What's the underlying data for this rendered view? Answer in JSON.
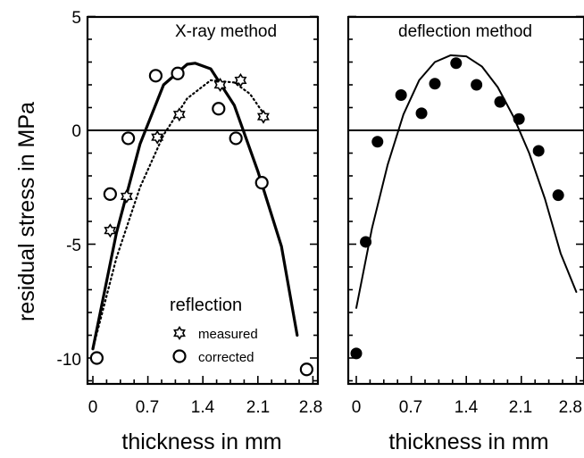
{
  "figure": {
    "ylabel": "residual stress in MPa"
  },
  "chart_data": [
    {
      "type": "scatter",
      "title": "X-ray method",
      "xlabel": "thickness in mm",
      "ylabel": "residual stress in MPa",
      "xlim": [
        0,
        2.8
      ],
      "ylim": [
        -11,
        5
      ],
      "xticks": [
        "0",
        "0.7",
        "1.4",
        "2.1",
        "2.8"
      ],
      "yticks": [
        "5",
        "0",
        "-5",
        "-10"
      ],
      "legend": {
        "title": "reflection",
        "entries": [
          {
            "label": "measured",
            "marker": "star"
          },
          {
            "label": "corrected",
            "marker": "open-circle"
          }
        ],
        "placement": "bottom-center"
      },
      "series": [
        {
          "name": "measured",
          "marker": "star",
          "points": [
            [
              0.22,
              -4.4
            ],
            [
              0.43,
              -2.9
            ],
            [
              0.82,
              -0.3
            ],
            [
              1.1,
              0.7
            ],
            [
              1.62,
              2.0
            ],
            [
              1.88,
              2.2
            ],
            [
              2.17,
              0.6
            ]
          ]
        },
        {
          "name": "corrected",
          "marker": "open-circle",
          "points": [
            [
              0.05,
              -10.0
            ],
            [
              0.22,
              -2.8
            ],
            [
              0.45,
              -0.35
            ],
            [
              0.8,
              2.4
            ],
            [
              1.08,
              2.5
            ],
            [
              1.6,
              0.95
            ],
            [
              1.82,
              -0.35
            ],
            [
              2.15,
              -2.3
            ],
            [
              2.72,
              -10.5
            ]
          ]
        },
        {
          "fit": "measured",
          "line": "dotted",
          "points": [
            [
              0.0,
              -9.6
            ],
            [
              0.3,
              -5.6
            ],
            [
              0.6,
              -2.5
            ],
            [
              0.9,
              -0.2
            ],
            [
              1.2,
              1.4
            ],
            [
              1.5,
              2.2
            ],
            [
              1.8,
              2.1
            ],
            [
              2.0,
              1.6
            ],
            [
              2.2,
              0.6
            ]
          ]
        },
        {
          "fit": "corrected",
          "line": "solid-thick",
          "points": [
            [
              0.0,
              -9.6
            ],
            [
              0.3,
              -4.5
            ],
            [
              0.6,
              -0.6
            ],
            [
              0.9,
              2.0
            ],
            [
              1.2,
              2.9
            ],
            [
              1.3,
              2.95
            ],
            [
              1.5,
              2.7
            ],
            [
              1.8,
              1.1
            ],
            [
              2.1,
              -1.8
            ],
            [
              2.4,
              -5.1
            ],
            [
              2.6,
              -9.0
            ]
          ]
        }
      ]
    },
    {
      "type": "scatter",
      "title": "deflection method",
      "xlabel": "thickness in mm",
      "xlim": [
        0,
        2.8
      ],
      "ylim": [
        -11,
        5
      ],
      "xticks": [
        "0",
        "0.7",
        "1.4",
        "2.1",
        "2.8"
      ],
      "series": [
        {
          "marker": "filled-circle",
          "points": [
            [
              0.0,
              -9.8
            ],
            [
              0.12,
              -4.9
            ],
            [
              0.27,
              -0.5
            ],
            [
              0.57,
              1.55
            ],
            [
              0.83,
              0.75
            ],
            [
              1.0,
              2.05
            ],
            [
              1.27,
              2.95
            ],
            [
              1.53,
              2.0
            ],
            [
              1.83,
              1.25
            ],
            [
              2.07,
              0.5
            ],
            [
              2.32,
              -0.9
            ],
            [
              2.57,
              -2.85
            ]
          ]
        },
        {
          "fit": "parabola",
          "line": "solid",
          "points": [
            [
              0.0,
              -7.8
            ],
            [
              0.2,
              -4.3
            ],
            [
              0.4,
              -1.5
            ],
            [
              0.6,
              0.7
            ],
            [
              0.8,
              2.2
            ],
            [
              1.0,
              3.0
            ],
            [
              1.2,
              3.3
            ],
            [
              1.4,
              3.25
            ],
            [
              1.6,
              2.8
            ],
            [
              1.8,
              1.9
            ],
            [
              2.0,
              0.6
            ],
            [
              2.2,
              -1.0
            ],
            [
              2.4,
              -3.0
            ],
            [
              2.6,
              -5.4
            ],
            [
              2.8,
              -7.1
            ]
          ]
        }
      ]
    }
  ]
}
